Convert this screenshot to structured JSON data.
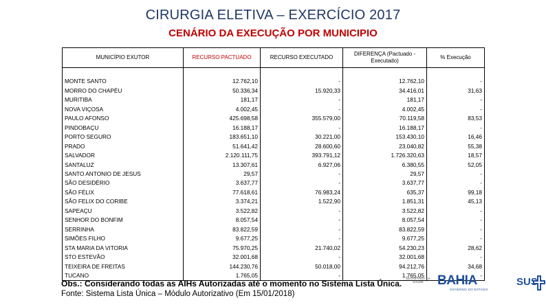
{
  "header": {
    "title": "CIRURGIA ELETIVA – EXERCÍCIO 2017",
    "subtitle": "CENÁRIO DA EXECUÇÃO POR MUNICIPIO"
  },
  "table": {
    "columns": [
      "MUNICÍPIO EXUTOR",
      "RECURSO PACTUADO",
      "RECURSO EXECUTADO",
      "DIFERENÇA (Pactuado - Executado)",
      "% Execução"
    ],
    "rows": [
      [
        "MONTE SANTO",
        "12.762,10",
        "-",
        "12.762,10",
        "-"
      ],
      [
        "MORRO DO CHAPÉU",
        "50.336,34",
        "15.920,33",
        "34.416,01",
        "31,63"
      ],
      [
        "MURITIBA",
        "181,17",
        "-",
        "181,17",
        "-"
      ],
      [
        "NOVA VIÇOSA",
        "4.002,45",
        "-",
        "4.002,45",
        "-"
      ],
      [
        "PAULO AFONSO",
        "425.698,58",
        "355.579,00",
        "70.119,58",
        "83,53"
      ],
      [
        "PINDOBAÇU",
        "16.188,17",
        "-",
        "16.188,17",
        "-"
      ],
      [
        "PORTO SEGURO",
        "183.651,10",
        "30.221,00",
        "153.430,10",
        "16,46"
      ],
      [
        "PRADO",
        "51.641,42",
        "28.600,60",
        "23.040,82",
        "55,38"
      ],
      [
        "SALVADOR",
        "2.120.111,75",
        "393.791,12",
        "1.726.320,63",
        "18,57"
      ],
      [
        "SANTALUZ",
        "13.307,61",
        "6.927,06",
        "6.380,55",
        "52,05"
      ],
      [
        "SANTO ANTONIO DE JESUS",
        "29,57",
        "-",
        "29,57",
        "-"
      ],
      [
        "SÃO DESIDÉRIO",
        "3.637,77",
        "-",
        "3.637,77",
        "-"
      ],
      [
        "SÃO FÉLIX",
        "77.618,61",
        "76.983,24",
        "635,37",
        "99,18"
      ],
      [
        "SÃO FELIX DO CORIBE",
        "3.374,21",
        "1.522,90",
        "1.851,31",
        "45,13"
      ],
      [
        "SAPEAÇU",
        "3.522,82",
        "-",
        "3.522,82",
        "-"
      ],
      [
        "SENHOR DO BONFIM",
        "8.057,54",
        "-",
        "8.057,54",
        "-"
      ],
      [
        "SERRINHA",
        "83.822,59",
        "-",
        "83.822,59",
        "-"
      ],
      [
        "SIMÕES FILHO",
        "9.677,25",
        "-",
        "9.677,25",
        "-"
      ],
      [
        "STA MARIA DA VITORIA",
        "75.970,25",
        "21.740,02",
        "54.230,23",
        "28,62"
      ],
      [
        "STO ESTEVÃO",
        "32.001,68",
        "-",
        "32.001,68",
        "-"
      ],
      [
        "TEIXEIRA DE FREITAS",
        "144.230,76",
        "50.018,00",
        "94.212,76",
        "34,68"
      ],
      [
        "TUCANO",
        "1.765,05",
        "-",
        "1.765,05",
        "-"
      ]
    ]
  },
  "footer": {
    "obs": "Obs.: Considerando todas as AIHs Autorizadas até o momento no Sistema Lista Única.",
    "fonte": "Fonte: Sistema Lista Única – Módulo Autorizativo (Em 15/01/2018)"
  },
  "logos": {
    "secretaria": "SECRETARIA DA SAÚDE",
    "bahia": "BAHIA",
    "bahia_sub": "GOVERNO DO ESTADO",
    "sus": "SUS",
    "sus_icon": "cross-icon",
    "sus_color": "#1f4e9c"
  }
}
